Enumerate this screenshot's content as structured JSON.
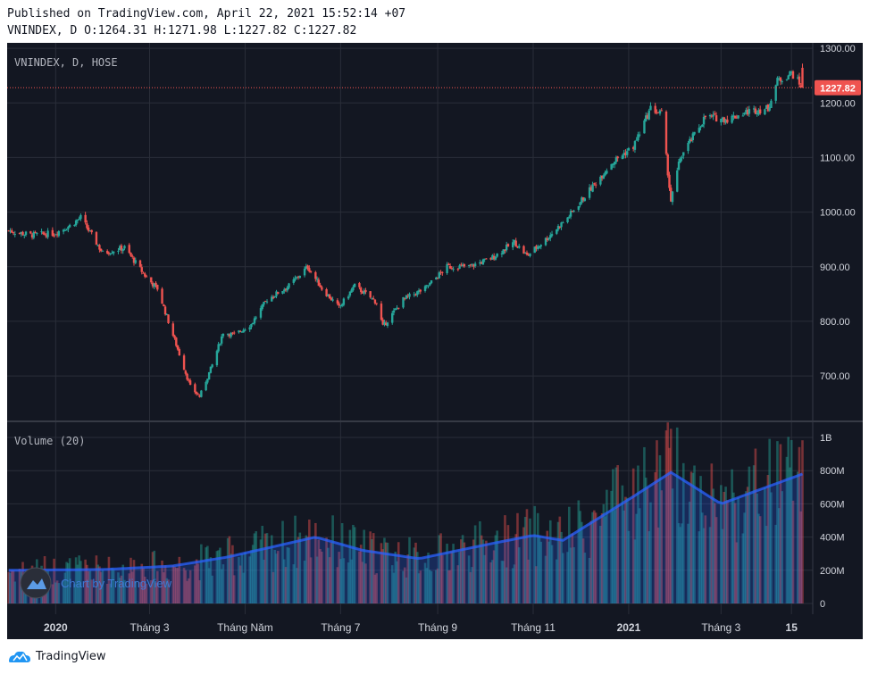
{
  "header": {
    "published": "Published on TradingView.com, April 22, 2021 15:52:14 +07",
    "ohlc": "VNINDEX, D O:1264.31 H:1271.98 L:1227.82 C:1227.82"
  },
  "footer": {
    "brand": "TradingView"
  },
  "chart_data": [
    {
      "type": "candlestick",
      "title": "VNINDEX, D, HOSE",
      "last_price": 1227.82,
      "last_price_label": "1227.82",
      "ylim": [
        620,
        1310
      ],
      "y_ticks": [
        "700.00",
        "800.00",
        "900.00",
        "1000.00",
        "1100.00",
        "1200.00",
        "1300.00"
      ],
      "x_tick_labels": [
        "2020",
        "Tháng 3",
        "Tháng Năm",
        "Tháng 7",
        "Tháng 9",
        "Tháng 11",
        "2021",
        "Tháng 3",
        "15"
      ],
      "grid": true,
      "close_series_approx": [
        {
          "date": "2019-12-02",
          "close": 966
        },
        {
          "date": "2019-12-16",
          "close": 958
        },
        {
          "date": "2019-12-31",
          "close": 961
        },
        {
          "date": "2020-01-10",
          "close": 975
        },
        {
          "date": "2020-01-17",
          "close": 990
        },
        {
          "date": "2020-01-31",
          "close": 925
        },
        {
          "date": "2020-02-14",
          "close": 935
        },
        {
          "date": "2020-02-28",
          "close": 880
        },
        {
          "date": "2020-03-06",
          "close": 860
        },
        {
          "date": "2020-03-13",
          "close": 800
        },
        {
          "date": "2020-03-20",
          "close": 740
        },
        {
          "date": "2020-03-27",
          "close": 680
        },
        {
          "date": "2020-04-02",
          "close": 662
        },
        {
          "date": "2020-04-10",
          "close": 720
        },
        {
          "date": "2020-04-17",
          "close": 780
        },
        {
          "date": "2020-04-24",
          "close": 775
        },
        {
          "date": "2020-05-05",
          "close": 795
        },
        {
          "date": "2020-05-15",
          "close": 840
        },
        {
          "date": "2020-05-29",
          "close": 865
        },
        {
          "date": "2020-06-10",
          "close": 900
        },
        {
          "date": "2020-06-19",
          "close": 860
        },
        {
          "date": "2020-06-30",
          "close": 825
        },
        {
          "date": "2020-07-10",
          "close": 865
        },
        {
          "date": "2020-07-24",
          "close": 835
        },
        {
          "date": "2020-07-28",
          "close": 790
        },
        {
          "date": "2020-08-10",
          "close": 840
        },
        {
          "date": "2020-08-24",
          "close": 860
        },
        {
          "date": "2020-09-07",
          "close": 900
        },
        {
          "date": "2020-09-21",
          "close": 900
        },
        {
          "date": "2020-10-05",
          "close": 915
        },
        {
          "date": "2020-10-20",
          "close": 945
        },
        {
          "date": "2020-10-28",
          "close": 920
        },
        {
          "date": "2020-11-09",
          "close": 950
        },
        {
          "date": "2020-11-23",
          "close": 990
        },
        {
          "date": "2020-12-07",
          "close": 1040
        },
        {
          "date": "2020-12-21",
          "close": 1090
        },
        {
          "date": "2021-01-04",
          "close": 1120
        },
        {
          "date": "2021-01-15",
          "close": 1190
        },
        {
          "date": "2021-01-22",
          "close": 1180
        },
        {
          "date": "2021-01-28",
          "close": 1020
        },
        {
          "date": "2021-02-03",
          "close": 1100
        },
        {
          "date": "2021-02-19",
          "close": 1175
        },
        {
          "date": "2021-03-05",
          "close": 1170
        },
        {
          "date": "2021-03-19",
          "close": 1185
        },
        {
          "date": "2021-03-31",
          "close": 1190
        },
        {
          "date": "2021-04-06",
          "close": 1240
        },
        {
          "date": "2021-04-15",
          "close": 1255
        },
        {
          "date": "2021-04-22",
          "close": 1228
        }
      ]
    },
    {
      "type": "bar",
      "title": "Volume (20)",
      "ylim": [
        0,
        1050000000
      ],
      "y_ticks": [
        "0",
        "200M",
        "400M",
        "600M",
        "800M",
        "1B"
      ],
      "ma20_approx": [
        {
          "date": "2019-12-02",
          "value": 200000000
        },
        {
          "date": "2020-02-01",
          "value": 205000000
        },
        {
          "date": "2020-03-15",
          "value": 225000000
        },
        {
          "date": "2020-04-20",
          "value": 280000000
        },
        {
          "date": "2020-06-15",
          "value": 400000000
        },
        {
          "date": "2020-07-15",
          "value": 320000000
        },
        {
          "date": "2020-08-20",
          "value": 270000000
        },
        {
          "date": "2020-10-05",
          "value": 360000000
        },
        {
          "date": "2020-11-01",
          "value": 410000000
        },
        {
          "date": "2020-11-20",
          "value": 380000000
        },
        {
          "date": "2021-01-05",
          "value": 650000000
        },
        {
          "date": "2021-01-28",
          "value": 790000000
        },
        {
          "date": "2021-03-01",
          "value": 600000000
        },
        {
          "date": "2021-04-22",
          "value": 780000000
        }
      ]
    }
  ],
  "colors": {
    "background": "#131722",
    "grid": "#2a2e39",
    "up": "#26a69a",
    "down": "#ef5350",
    "volume_up": "#26a69a",
    "volume_down": "#ef5350",
    "ma_line": "#2962ff",
    "price_label_bg": "#ef5350",
    "axis_text": "#d1d4dc",
    "watermark": "#3e7bd6"
  },
  "watermark_text": "Chart by TradingView"
}
